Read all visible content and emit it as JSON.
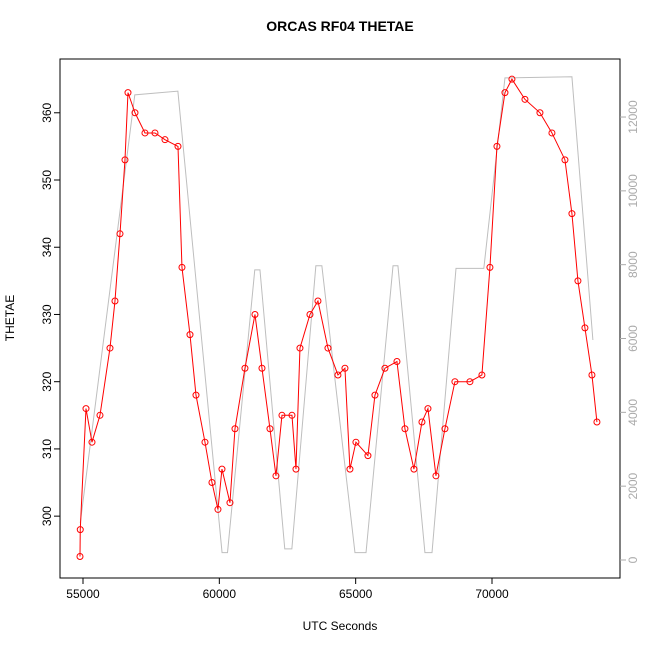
{
  "chart_data": {
    "type": "scatter",
    "title": "ORCAS RF04 THETAE",
    "x_label": "UTC Seconds",
    "y_label": "THETAE",
    "xlim": [
      54157,
      74694
    ],
    "ylim": [
      290.8,
      368.0
    ],
    "y2lim": [
      -488,
      13572
    ],
    "xticks": [
      55000,
      60000,
      65000,
      70000
    ],
    "yticks": [
      300,
      310,
      320,
      330,
      340,
      350,
      360
    ],
    "y2ticks": [
      0,
      2000,
      4000,
      6000,
      8000,
      10000,
      12000
    ],
    "series": [
      {
        "color": "#ff0000",
        "marker": "circle",
        "x": [
          54890,
          54900,
          55110,
          55330,
          55623,
          55990,
          56173,
          56357,
          56540,
          56650,
          56907,
          57273,
          57640,
          58007,
          58484,
          58630,
          58924,
          59144,
          59474,
          59730,
          59950,
          60097,
          60390,
          60574,
          60940,
          61307,
          61564,
          61857,
          62077,
          62297,
          62664,
          62811,
          62957,
          63324,
          63617,
          63984,
          64350,
          64607,
          64790,
          65010,
          65450,
          65707,
          66074,
          66514,
          66807,
          67137,
          67431,
          67651,
          67944,
          68274,
          68640,
          69190,
          69630,
          69924,
          70181,
          70475,
          70731,
          71208,
          71758,
          72198,
          72675,
          72931,
          73151,
          73408,
          73665,
          73848
        ],
        "values": [
          294,
          298,
          316,
          311,
          315,
          325,
          332,
          342,
          353,
          363,
          360,
          357,
          357,
          356,
          355,
          337,
          327,
          318,
          311,
          305,
          301,
          307,
          302,
          313,
          322,
          330,
          322,
          313,
          306,
          315,
          315,
          307,
          325,
          330,
          332,
          325,
          321,
          322,
          307,
          311,
          309,
          318,
          322,
          323,
          313,
          307,
          314,
          316,
          306,
          313,
          320,
          320,
          321,
          337,
          355,
          363,
          365,
          362,
          360,
          357,
          353,
          345,
          335,
          328,
          321,
          314
        ]
      },
      {
        "color": "#bebebe",
        "axis": "y2",
        "marker": "line",
        "x": [
          54900,
          56900,
          58480,
          60100,
          60300,
          61300,
          61490,
          62400,
          62660,
          63540,
          63760,
          64974,
          65380,
          66370,
          66550,
          67540,
          67800,
          68680,
          69700,
          70475,
          72931,
          73700
        ],
        "values": [
          1000,
          12600,
          12700,
          200,
          200,
          7860,
          7860,
          300,
          300,
          7970,
          7970,
          200,
          200,
          7970,
          7970,
          200,
          200,
          7900,
          7900,
          13060,
          13090,
          5960
        ]
      }
    ]
  }
}
